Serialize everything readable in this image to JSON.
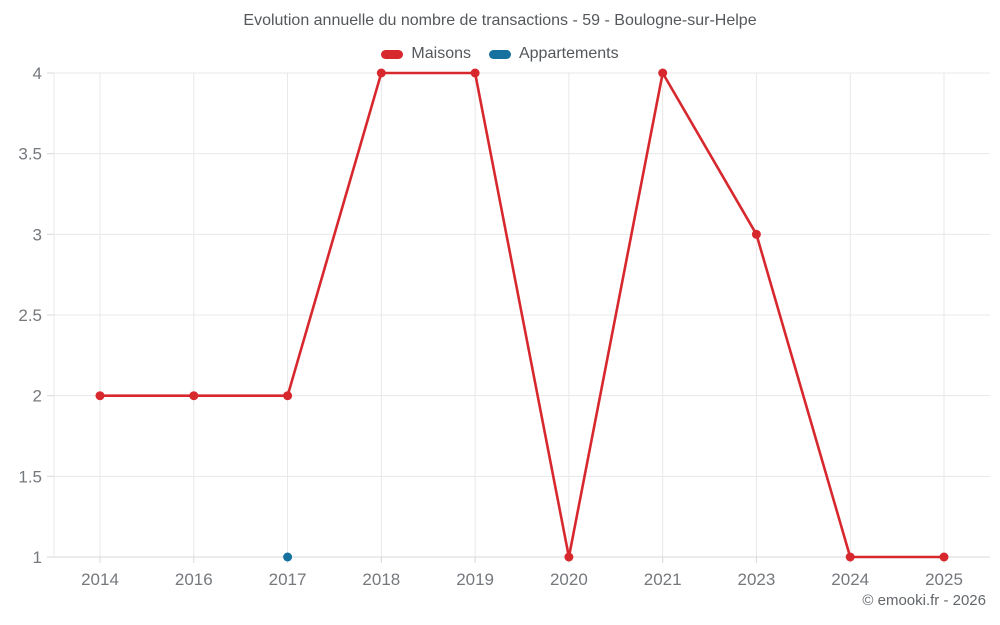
{
  "footer": {
    "copyright": "© emooki.fr - 2026"
  },
  "chart_data": {
    "type": "line",
    "title": "Evolution annuelle du nombre de transactions - 59 - Boulogne-sur-Helpe",
    "categories": [
      "2014",
      "2016",
      "2017",
      "2018",
      "2019",
      "2020",
      "2021",
      "2023",
      "2024",
      "2025"
    ],
    "series": [
      {
        "name": "Maisons",
        "color": "#d7282e",
        "values": [
          2,
          2,
          2,
          4,
          4,
          1,
          4,
          3,
          1,
          1
        ]
      },
      {
        "name": "Appartements",
        "color": "#17719f",
        "values": [
          null,
          null,
          1,
          null,
          null,
          null,
          null,
          null,
          null,
          null
        ]
      }
    ],
    "yticks": [
      1,
      1.5,
      2,
      2.5,
      3,
      3.5,
      4
    ],
    "ylim": [
      1,
      4
    ],
    "xlabel": "",
    "ylabel": "",
    "grid": true,
    "legend_position": "top",
    "colors": {
      "gridline": "#e8e8e8",
      "axis": "#d8d8d8",
      "tick_label": "#75797d",
      "title_text": "#54585c"
    }
  }
}
